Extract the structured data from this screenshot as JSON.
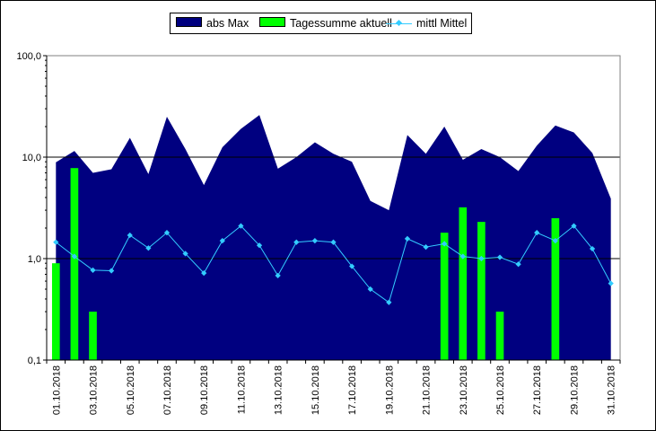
{
  "chart_data": {
    "type": "area",
    "title": "",
    "xlabel": "",
    "ylabel": "",
    "yscale": "log",
    "ylim": [
      0.1,
      100
    ],
    "ytick_labels": [
      "0,1",
      "1,0",
      "10,0",
      "100,0"
    ],
    "grid": "horizontal major",
    "legend_position": "top",
    "x": [
      "01.10.2018",
      "02.10.2018",
      "03.10.2018",
      "04.10.2018",
      "05.10.2018",
      "06.10.2018",
      "07.10.2018",
      "08.10.2018",
      "09.10.2018",
      "10.10.2018",
      "11.10.2018",
      "12.10.2018",
      "13.10.2018",
      "14.10.2018",
      "15.10.2018",
      "16.10.2018",
      "17.10.2018",
      "18.10.2018",
      "19.10.2018",
      "20.10.2018",
      "21.10.2018",
      "22.10.2018",
      "23.10.2018",
      "24.10.2018",
      "25.10.2018",
      "26.10.2018",
      "27.10.2018",
      "28.10.2018",
      "29.10.2018",
      "30.10.2018",
      "31.10.2018"
    ],
    "xtick_labels": [
      "01.10.2018",
      "03.10.2018",
      "05.10.2018",
      "07.10.2018",
      "09.10.2018",
      "11.10.2018",
      "13.10.2018",
      "15.10.2018",
      "17.10.2018",
      "19.10.2018",
      "21.10.2018",
      "23.10.2018",
      "25.10.2018",
      "27.10.2018",
      "29.10.2018",
      "31.10.2018"
    ],
    "series": [
      {
        "name": "abs Max",
        "kind": "area",
        "color": "#000080",
        "values": [
          8.9,
          11.5,
          7.0,
          7.6,
          15.5,
          6.8,
          25.0,
          12.0,
          5.3,
          12.5,
          19.0,
          26.0,
          7.7,
          10.0,
          14.0,
          10.8,
          9.0,
          3.7,
          3.0,
          16.5,
          10.8,
          20.0,
          9.4,
          12.0,
          10.0,
          7.3,
          13.0,
          20.5,
          17.5,
          11.0,
          3.9
        ]
      },
      {
        "name": "Tagessumme aktuell",
        "kind": "bar",
        "color": "#00ff00",
        "values": [
          0.9,
          7.8,
          0.3,
          null,
          null,
          null,
          null,
          null,
          null,
          null,
          null,
          null,
          null,
          null,
          null,
          null,
          null,
          null,
          null,
          null,
          null,
          1.8,
          3.2,
          2.3,
          0.3,
          null,
          null,
          2.5,
          null,
          null,
          null
        ]
      },
      {
        "name": "mittl Mittel",
        "kind": "line",
        "color": "#33ccff",
        "values": [
          1.45,
          1.05,
          0.77,
          0.76,
          1.7,
          1.27,
          1.8,
          1.12,
          0.72,
          1.5,
          2.1,
          1.35,
          0.68,
          1.45,
          1.5,
          1.45,
          0.84,
          0.5,
          0.37,
          1.57,
          1.3,
          1.4,
          1.05,
          1.0,
          1.03,
          0.88,
          1.8,
          1.5,
          2.1,
          1.25,
          0.57
        ]
      }
    ]
  }
}
